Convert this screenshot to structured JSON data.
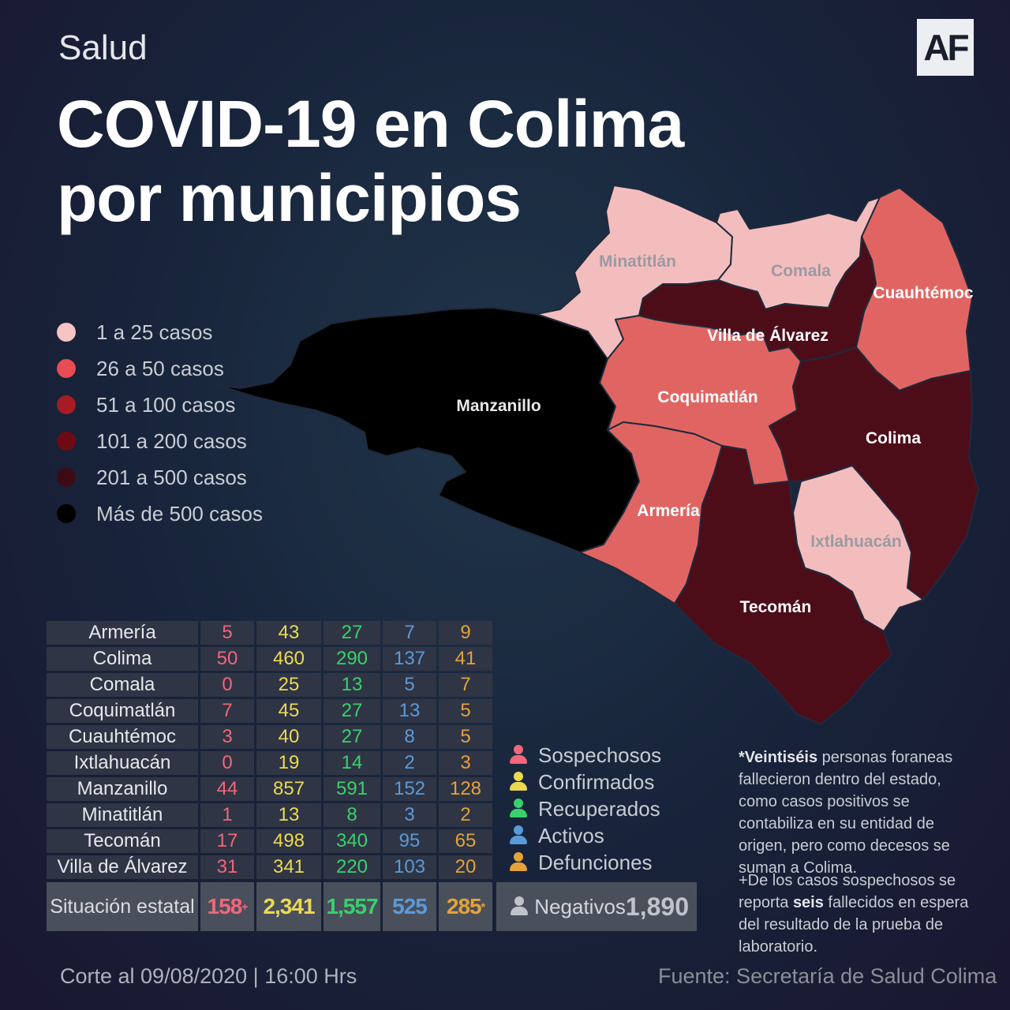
{
  "section": "Salud",
  "logo": "AF",
  "title": {
    "line1": "COVID-19 en Colima",
    "line2": "por municipios"
  },
  "colors": {
    "range_1_25": "#f7c3c3",
    "range_26_50": "#e86464",
    "range_51_100": "#a61b24",
    "range_101_200": "#6e0b12",
    "range_201_500": "#4d0d18",
    "range_over_500": "#000000"
  },
  "legend": [
    {
      "label": "1 a 25 casos",
      "color": "#f7c3c3"
    },
    {
      "label": "26 a  50 casos",
      "color": "#e84b52"
    },
    {
      "label": "51 a  100 casos",
      "color": "#a61b24"
    },
    {
      "label": "101 a  200 casos",
      "color": "#6e0b12"
    },
    {
      "label": "201  a  500 casos",
      "color": "#3d0a16"
    },
    {
      "label": "Más de 500 casos",
      "color": "#000000"
    }
  ],
  "map_labels": {
    "minatitlan": "Minatitlán",
    "comala": "Comala",
    "cuauhtemoc": "Cuauhtémoc",
    "villa": "Villa de Álvarez",
    "manzanillo": "Manzanillo",
    "coquimatlan": "Coquimatlán",
    "colima": "Colima",
    "armeria": "Armería",
    "ixtlahuacan": "Ixtlahuacán",
    "tecoman": "Tecomán"
  },
  "table": {
    "rows": [
      {
        "municipio": "Armería",
        "sospechosos": "5",
        "confirmados": "43",
        "recuperados": "27",
        "activos": "7",
        "defunciones": "9"
      },
      {
        "municipio": "Colima",
        "sospechosos": "50",
        "confirmados": "460",
        "recuperados": "290",
        "activos": "137",
        "defunciones": "41"
      },
      {
        "municipio": "Comala",
        "sospechosos": "0",
        "confirmados": "25",
        "recuperados": "13",
        "activos": "5",
        "defunciones": "7"
      },
      {
        "municipio": "Coquimatlán",
        "sospechosos": "7",
        "confirmados": "45",
        "recuperados": "27",
        "activos": "13",
        "defunciones": "5"
      },
      {
        "municipio": "Cuauhtémoc",
        "sospechosos": "3",
        "confirmados": "40",
        "recuperados": "27",
        "activos": "8",
        "defunciones": "5"
      },
      {
        "municipio": "Ixtlahuacán",
        "sospechosos": "0",
        "confirmados": "19",
        "recuperados": "14",
        "activos": "2",
        "defunciones": "3"
      },
      {
        "municipio": "Manzanillo",
        "sospechosos": "44",
        "confirmados": "857",
        "recuperados": "591",
        "activos": "152",
        "defunciones": "128"
      },
      {
        "municipio": "Minatitlán",
        "sospechosos": "1",
        "confirmados": "13",
        "recuperados": "8",
        "activos": "3",
        "defunciones": "2"
      },
      {
        "municipio": "Tecomán",
        "sospechosos": "17",
        "confirmados": "498",
        "recuperados": "340",
        "activos": "95",
        "defunciones": "65"
      },
      {
        "municipio": "Villa de Álvarez",
        "sospechosos": "31",
        "confirmados": "341",
        "recuperados": "220",
        "activos": "103",
        "defunciones": "20"
      }
    ],
    "state": {
      "label": "Situación estatal",
      "sospechosos": "158",
      "sospechosos_mark": "+",
      "confirmados": "2,341",
      "recuperados": "1,557",
      "activos": "525",
      "defunciones": "285",
      "defunciones_mark": "*"
    }
  },
  "status_legend": [
    {
      "label": "Sospechosos",
      "color": "#f0677a"
    },
    {
      "label": "Confirmados",
      "color": "#ecd953"
    },
    {
      "label": "Recuperados",
      "color": "#39d16a"
    },
    {
      "label": "Activos",
      "color": "#5b9ad8"
    },
    {
      "label": "Defunciones",
      "color": "#e3a23a"
    }
  ],
  "negativos": {
    "label": "Negativos",
    "value": "1,890"
  },
  "notes": {
    "n1_star": "*",
    "n1_bold": "Veintiséis",
    "n1_rest": " personas foraneas fallecieron dentro del estado, como casos positivos se contabiliza en su entidad de origen, pero como decesos se suman a Colima.",
    "n2_pre": "+De los casos sospechosos se reporta ",
    "n2_bold": "seis",
    "n2_rest": " fallecidos en espera del resultado de la prueba de laboratorio."
  },
  "footer": {
    "corte": "Corte al 09/08/2020 | 16:00 Hrs",
    "fuente": "Fuente: Secretaría de Salud Colima"
  }
}
